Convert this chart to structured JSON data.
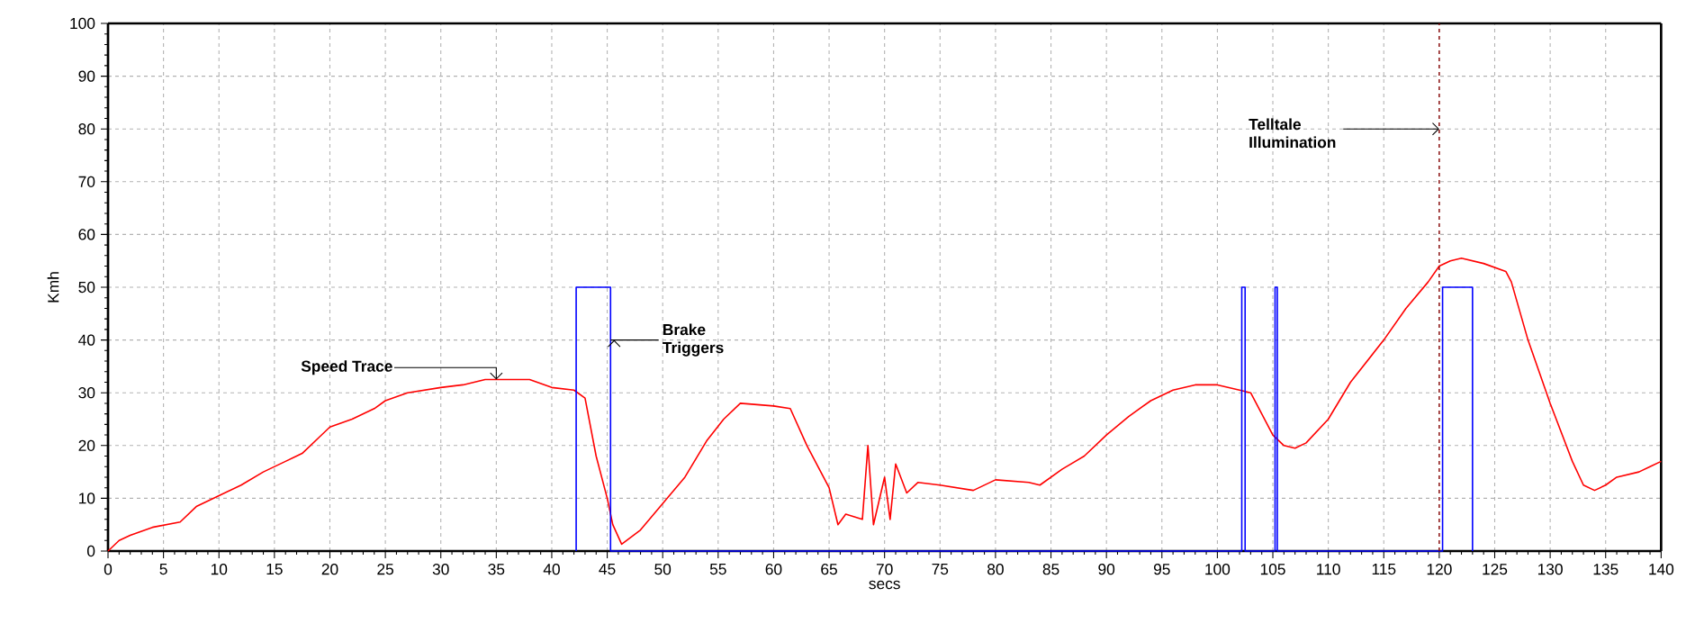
{
  "chart_data": {
    "type": "line",
    "xlabel": "secs",
    "ylabel": "Kmh",
    "xlim": [
      0,
      140
    ],
    "xticks": [
      0,
      5,
      10,
      15,
      20,
      25,
      30,
      35,
      40,
      45,
      50,
      55,
      60,
      65,
      70,
      75,
      80,
      85,
      90,
      95,
      100,
      105,
      110,
      115,
      120,
      125,
      130,
      135,
      140
    ],
    "ylim": [
      0,
      100
    ],
    "yticks": [
      0,
      10,
      20,
      30,
      40,
      50,
      60,
      70,
      80,
      90,
      100
    ],
    "grid": true,
    "series": [
      {
        "color": "#ff0000",
        "x": [
          0,
          1,
          2,
          4,
          6.5,
          8,
          10,
          12,
          14,
          16,
          17.5,
          19,
          20,
          22,
          24,
          25,
          27,
          30,
          32,
          34,
          37,
          38,
          40,
          42,
          43,
          44,
          45,
          45.5,
          46.3,
          48,
          50,
          52,
          54,
          55.5,
          57,
          60,
          61.5,
          63,
          65,
          65.8,
          66.5,
          68,
          68.5,
          69,
          70,
          70.5,
          71,
          72,
          73,
          75,
          78,
          80,
          83,
          84,
          86,
          88,
          90,
          92,
          94,
          96,
          98,
          100,
          102,
          103,
          104,
          105,
          106,
          107,
          108,
          110,
          112,
          115,
          117,
          119,
          120,
          121,
          122,
          124,
          126,
          126.5,
          128,
          130,
          132,
          133,
          134,
          135,
          136,
          138,
          139,
          140
        ],
        "values": [
          0,
          2,
          3,
          4.5,
          5.5,
          8.5,
          10.5,
          12.5,
          15,
          17,
          18.5,
          21.5,
          23.5,
          25,
          27,
          28.5,
          30,
          31,
          31.5,
          32.5,
          32.5,
          32.5,
          31,
          30.5,
          29,
          18,
          10,
          5,
          1.3,
          4,
          9,
          14,
          21,
          25,
          28,
          27.5,
          27,
          20,
          12,
          5,
          7,
          6,
          20,
          5,
          14,
          6,
          16.5,
          11,
          13,
          12.5,
          11.5,
          13.5,
          13,
          12.5,
          15.5,
          18,
          22,
          25.5,
          28.5,
          30.5,
          31.5,
          31.5,
          30.5,
          30,
          26,
          22,
          20,
          19.5,
          20.5,
          25,
          32,
          40,
          46,
          51,
          54,
          55,
          55.5,
          54.5,
          53,
          51,
          40,
          28,
          17,
          12.5,
          11.5,
          12.5,
          14,
          15,
          16,
          17
        ]
      },
      {
        "type": "step",
        "color": "#0000ff",
        "x": [
          42.2,
          42.2,
          45.3,
          102.2,
          102.5,
          105.2,
          105.4,
          120.3,
          123
        ],
        "values": [
          0,
          50,
          0,
          50,
          0,
          50,
          0,
          50,
          0
        ]
      }
    ],
    "ref_lines": [
      {
        "axis": "x",
        "value": 120,
        "color": "#8b0000",
        "line_style": "dashed"
      }
    ],
    "annotations": [
      {
        "text": "Speed Trace",
        "x": 35,
        "y": 32.5
      },
      {
        "text": "Brake Triggers",
        "x": 45.3,
        "y": 40
      },
      {
        "text": "Telltale Illumination",
        "x": 120,
        "y": 80
      }
    ]
  }
}
